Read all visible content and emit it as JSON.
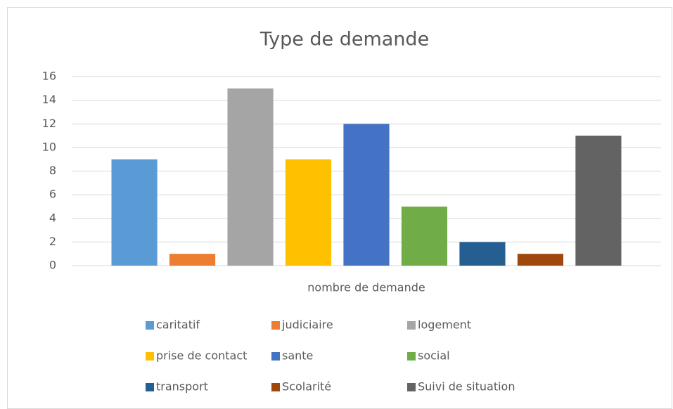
{
  "chart_data": {
    "type": "bar",
    "title": "Type de demande",
    "categories": [
      "nombre de demande"
    ],
    "series": [
      {
        "name": "caritatif",
        "color": "#5b9bd5",
        "values": [
          9
        ]
      },
      {
        "name": "judiciaire",
        "color": "#ed7d31",
        "values": [
          1
        ]
      },
      {
        "name": "logement",
        "color": "#a5a5a5",
        "values": [
          15
        ]
      },
      {
        "name": "prise de contact",
        "color": "#ffc000",
        "values": [
          9
        ]
      },
      {
        "name": "sante",
        "color": "#4472c4",
        "values": [
          12
        ]
      },
      {
        "name": "social",
        "color": "#70ad47",
        "values": [
          5
        ]
      },
      {
        "name": "transport",
        "color": "#255e91",
        "values": [
          2
        ]
      },
      {
        "name": "Scolarité",
        "color": "#9e480e",
        "values": [
          1
        ]
      },
      {
        "name": "Suivi de situation",
        "color": "#636363",
        "values": [
          11
        ]
      }
    ],
    "ylim": [
      0,
      16
    ],
    "yticks": [
      0,
      2,
      4,
      6,
      8,
      10,
      12,
      14,
      16
    ],
    "grid": true,
    "legend": "bottom"
  }
}
